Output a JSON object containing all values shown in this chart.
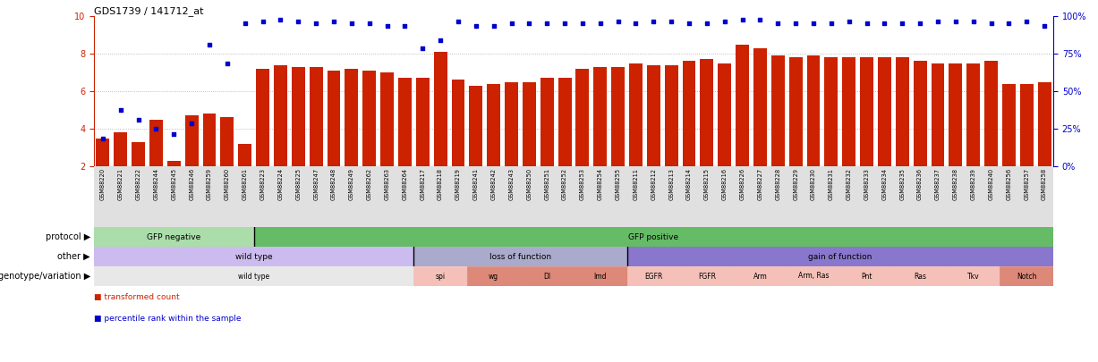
{
  "title": "GDS1739 / 141712_at",
  "samples": [
    "GSM88220",
    "GSM88221",
    "GSM88222",
    "GSM88244",
    "GSM88245",
    "GSM88246",
    "GSM88259",
    "GSM88260",
    "GSM88261",
    "GSM88223",
    "GSM88224",
    "GSM88225",
    "GSM88247",
    "GSM88248",
    "GSM88249",
    "GSM88262",
    "GSM88263",
    "GSM88264",
    "GSM88217",
    "GSM88218",
    "GSM88219",
    "GSM88241",
    "GSM88242",
    "GSM88243",
    "GSM88250",
    "GSM88251",
    "GSM88252",
    "GSM88253",
    "GSM88254",
    "GSM88255",
    "GSM88211",
    "GSM88212",
    "GSM88213",
    "GSM88214",
    "GSM88215",
    "GSM88216",
    "GSM88226",
    "GSM88227",
    "GSM88228",
    "GSM88229",
    "GSM88230",
    "GSM88231",
    "GSM88232",
    "GSM88233",
    "GSM88234",
    "GSM88235",
    "GSM88236",
    "GSM88237",
    "GSM88238",
    "GSM88239",
    "GSM88240",
    "GSM88256",
    "GSM88257",
    "GSM88258"
  ],
  "bar_values": [
    3.5,
    3.8,
    3.3,
    4.5,
    2.3,
    4.7,
    4.8,
    4.6,
    3.2,
    7.2,
    7.4,
    7.3,
    7.3,
    7.1,
    7.2,
    7.1,
    7.0,
    6.7,
    6.7,
    8.1,
    6.6,
    6.3,
    6.4,
    6.5,
    6.5,
    6.7,
    6.7,
    7.2,
    7.3,
    7.3,
    7.5,
    7.4,
    7.4,
    7.6,
    7.7,
    7.5,
    8.5,
    8.3,
    7.9,
    7.8,
    7.9,
    7.8,
    7.8,
    7.8,
    7.8,
    7.8,
    7.6,
    7.5,
    7.5,
    7.5,
    7.6,
    6.4,
    6.4,
    6.5
  ],
  "dot_values": [
    3.5,
    5.0,
    4.5,
    4.0,
    3.7,
    4.3,
    8.5,
    7.5,
    9.6,
    9.7,
    9.8,
    9.7,
    9.6,
    9.7,
    9.6,
    9.6,
    9.5,
    9.5,
    8.3,
    8.7,
    9.7,
    9.5,
    9.5,
    9.6,
    9.6,
    9.6,
    9.6,
    9.6,
    9.6,
    9.7,
    9.6,
    9.7,
    9.7,
    9.6,
    9.6,
    9.7,
    9.8,
    9.8,
    9.6,
    9.6,
    9.6,
    9.6,
    9.7,
    9.6,
    9.6,
    9.6,
    9.6,
    9.7,
    9.7,
    9.7,
    9.6,
    9.6,
    9.7,
    9.5
  ],
  "bar_color": "#cc2200",
  "dot_color": "#0000cc",
  "ylim": [
    2,
    10
  ],
  "yticks": [
    2,
    4,
    6,
    8,
    10
  ],
  "right_ytick_labels": [
    "0%",
    "25%",
    "50%",
    "75%",
    "100%"
  ],
  "right_ytick_positions": [
    2,
    4,
    6,
    8,
    10
  ],
  "protocol_groups": [
    {
      "label": "GFP negative",
      "start": 0,
      "end": 9,
      "color": "#aaddaa"
    },
    {
      "label": "GFP positive",
      "start": 9,
      "end": 54,
      "color": "#66bb66"
    }
  ],
  "other_groups": [
    {
      "label": "wild type",
      "start": 0,
      "end": 18,
      "color": "#ccbbee"
    },
    {
      "label": "loss of function",
      "start": 18,
      "end": 30,
      "color": "#aaaacc"
    },
    {
      "label": "gain of function",
      "start": 30,
      "end": 54,
      "color": "#8877cc"
    }
  ],
  "genotype_groups": [
    {
      "label": "wild type",
      "start": 0,
      "end": 18,
      "color": "#e8e8e8"
    },
    {
      "label": "spi",
      "start": 18,
      "end": 21,
      "color": "#f4c0b8"
    },
    {
      "label": "wg",
      "start": 21,
      "end": 24,
      "color": "#dd8878"
    },
    {
      "label": "Dl",
      "start": 24,
      "end": 27,
      "color": "#dd8878"
    },
    {
      "label": "Imd",
      "start": 27,
      "end": 30,
      "color": "#dd8878"
    },
    {
      "label": "EGFR",
      "start": 30,
      "end": 33,
      "color": "#f4c0b8"
    },
    {
      "label": "FGFR",
      "start": 33,
      "end": 36,
      "color": "#f4c0b8"
    },
    {
      "label": "Arm",
      "start": 36,
      "end": 39,
      "color": "#f4c0b8"
    },
    {
      "label": "Arm, Ras",
      "start": 39,
      "end": 42,
      "color": "#f4c0b8"
    },
    {
      "label": "Pnt",
      "start": 42,
      "end": 45,
      "color": "#f4c0b8"
    },
    {
      "label": "Ras",
      "start": 45,
      "end": 48,
      "color": "#f4c0b8"
    },
    {
      "label": "Tkv",
      "start": 48,
      "end": 51,
      "color": "#f4c0b8"
    },
    {
      "label": "Notch",
      "start": 51,
      "end": 54,
      "color": "#dd8878"
    }
  ],
  "background_color": "#ffffff",
  "grid_color": "#aaaaaa"
}
